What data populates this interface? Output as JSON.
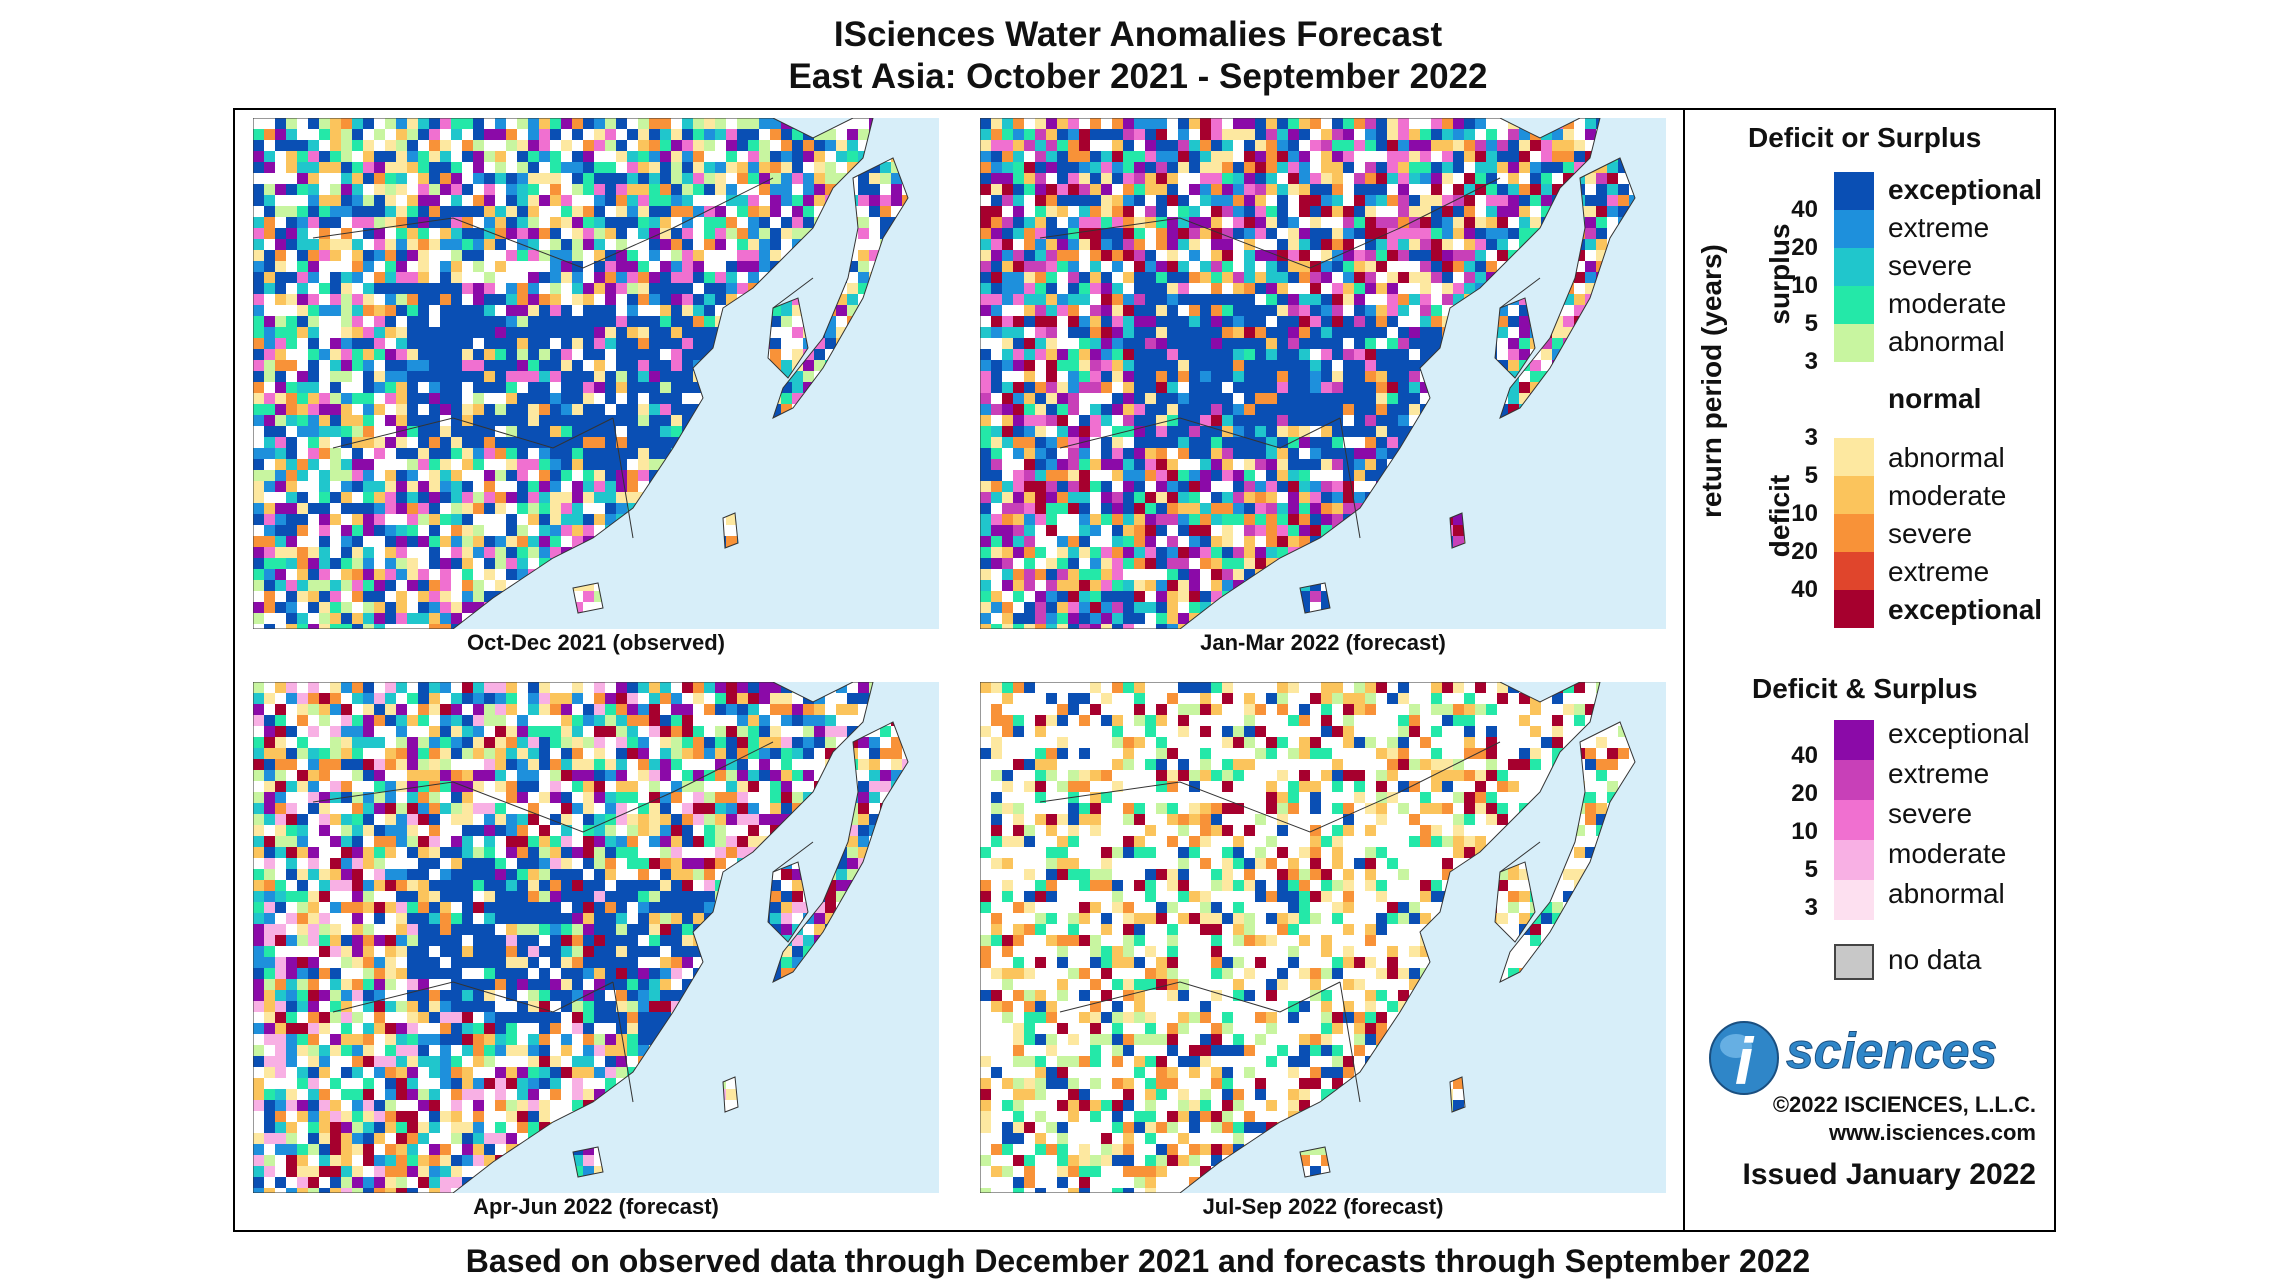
{
  "title_line1": "ISciences Water Anomalies Forecast",
  "title_line2": "East Asia: October 2021 - September 2022",
  "panels": [
    {
      "caption": "Oct-Dec 2021 (observed)"
    },
    {
      "caption": "Jan-Mar 2022 (forecast)"
    },
    {
      "caption": "Apr-Jun 2022 (forecast)"
    },
    {
      "caption": "Jul-Sep 2022 (forecast)"
    }
  ],
  "footer": "Based on observed data through December 2021 and forecasts through September 2022",
  "legend": {
    "title_main": "Deficit or Surplus",
    "axis_label": "return period (years)",
    "surplus_label": "surplus",
    "deficit_label": "deficit",
    "surplus_items": [
      {
        "label": "exceptional",
        "color": "#0a4fb4"
      },
      {
        "label": "extreme",
        "color": "#1e90dc"
      },
      {
        "label": "severe",
        "color": "#20c6cc"
      },
      {
        "label": "moderate",
        "color": "#24e8a8"
      },
      {
        "label": "abnormal",
        "color": "#c8f5a0"
      }
    ],
    "normal_label": "normal",
    "deficit_items": [
      {
        "label": "abnormal",
        "color": "#fde8a0"
      },
      {
        "label": "moderate",
        "color": "#fbc45c"
      },
      {
        "label": "severe",
        "color": "#f89238"
      },
      {
        "label": "extreme",
        "color": "#e0452c"
      },
      {
        "label": "exceptional",
        "color": "#a6002e"
      }
    ],
    "ticks_surplus": [
      "40",
      "20",
      "10",
      "5",
      "3"
    ],
    "ticks_deficit": [
      "3",
      "5",
      "10",
      "20",
      "40"
    ],
    "title_combo": "Deficit & Surplus",
    "combo_items": [
      {
        "label": "exceptional",
        "color": "#8b0aa8"
      },
      {
        "label": "extreme",
        "color": "#c840b8"
      },
      {
        "label": "severe",
        "color": "#f070d0"
      },
      {
        "label": "moderate",
        "color": "#f8b0e4"
      },
      {
        "label": "abnormal",
        "color": "#fde0f0"
      }
    ],
    "ticks_combo": [
      "40",
      "20",
      "10",
      "5",
      "3"
    ],
    "nodata_label": "no data",
    "nodata_color": "#c8c8c8"
  },
  "logo_text": "sciences",
  "logo_i": "i",
  "copyright": "©2022 ISCIENCES, L.L.C.",
  "website": "www.isciences.com",
  "issued": "Issued January 2022"
}
